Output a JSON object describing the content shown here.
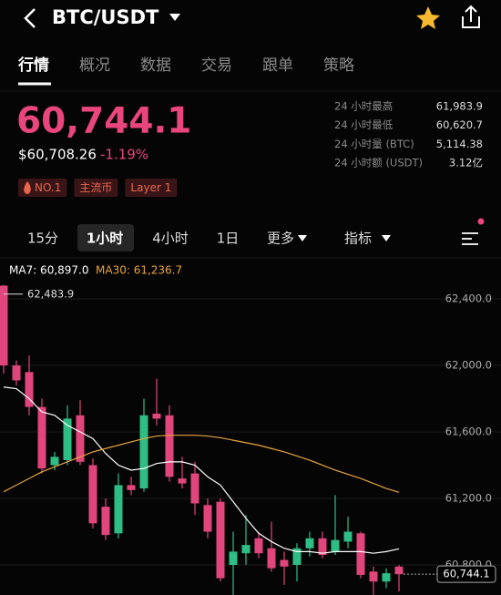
{
  "header": {
    "title": "BTC/USDT"
  },
  "tabs": [
    "行情",
    "概况",
    "数据",
    "交易",
    "跟单",
    "策略"
  ],
  "price": {
    "last": "60,744.1",
    "usd": "$60,708.26",
    "change": "-1.19%"
  },
  "tags": [
    "NO.1",
    "主流币",
    "Layer 1"
  ],
  "stats": [
    [
      "24 小时最高",
      "61,983.9"
    ],
    [
      "24 小时最低",
      "60,620.7"
    ],
    [
      "24 小时量 (BTC)",
      "5,114.38"
    ],
    [
      "24 小时额 (USDT)",
      "3.12亿"
    ]
  ],
  "intervals": [
    "15分",
    "1小时",
    "4小时",
    "1日",
    "更多",
    "指标"
  ],
  "chart_data": {
    "type": "candlestick",
    "open": [
      62480,
      62000,
      61960,
      61750,
      61400,
      61430,
      61700,
      61400,
      61150,
      60990,
      61280,
      61260,
      61710,
      61700,
      61320,
      61350,
      61160,
      61180,
      60800,
      60870,
      60960,
      60900,
      60830,
      60800,
      60900,
      60960,
      60880,
      60940,
      60990,
      60760,
      60700,
      60790
    ],
    "high": [
      62483.9,
      62030,
      62060,
      61800,
      61480,
      61760,
      61790,
      61440,
      61200,
      61350,
      61330,
      61800,
      61920,
      61760,
      61450,
      61420,
      61200,
      61200,
      61000,
      61100,
      61000,
      61060,
      60880,
      60930,
      61000,
      61000,
      61220,
      61090,
      61000,
      60790,
      60780,
      60800
    ],
    "low": [
      61950,
      61880,
      61700,
      61350,
      61370,
      61400,
      61400,
      61020,
      60950,
      60960,
      61220,
      61240,
      61640,
      61300,
      61260,
      61100,
      60960,
      60700,
      60620,
      60800,
      60840,
      60760,
      60680,
      60700,
      60850,
      60840,
      60860,
      60900,
      60720,
      60620,
      60660,
      60640
    ],
    "close": [
      62000,
      61910,
      61750,
      61380,
      61450,
      61680,
      61420,
      61050,
      60980,
      61280,
      61250,
      61700,
      61680,
      61330,
      61290,
      61170,
      61000,
      60720,
      60880,
      60920,
      60870,
      60780,
      60790,
      60900,
      60960,
      60860,
      60950,
      61000,
      60740,
      60700,
      60750,
      60744.1
    ],
    "up_color": "#2ebd85",
    "down_color": "#e0457b",
    "series": [
      {
        "name": "MA7: 60,897.0",
        "color": "#ffffff",
        "values": [
          61870,
          61860,
          61800,
          61720,
          61700,
          61640,
          61600,
          61560,
          61470,
          61400,
          61370,
          61380,
          61410,
          61420,
          61420,
          61400,
          61330,
          61280,
          61180,
          61080,
          60990,
          60940,
          60900,
          60880,
          60880,
          60870,
          60880,
          60880,
          60880,
          60870,
          60880,
          60897.0
        ]
      },
      {
        "name": "MA30: 61,236.7",
        "color": "#e8a33d",
        "values": [
          61240,
          61280,
          61320,
          61360,
          61390,
          61420,
          61450,
          61480,
          61500,
          61520,
          61540,
          61560,
          61575,
          61580,
          61580,
          61580,
          61575,
          61565,
          61550,
          61535,
          61520,
          61500,
          61480,
          61455,
          61430,
          61400,
          61370,
          61345,
          61320,
          61290,
          61260,
          61236.7
        ]
      }
    ],
    "ylim": [
      60619,
      62499
    ],
    "yticks": [
      {
        "value": 62400,
        "label": "62,400.0"
      },
      {
        "value": 62000,
        "label": "62,000.0"
      },
      {
        "value": 61600,
        "label": "61,600.0"
      },
      {
        "value": 61200,
        "label": "61,200.0"
      },
      {
        "value": 60800,
        "label": "60,800.0"
      }
    ],
    "grid": true,
    "annotations": [
      "62,483.9",
      "60,744.1"
    ]
  }
}
